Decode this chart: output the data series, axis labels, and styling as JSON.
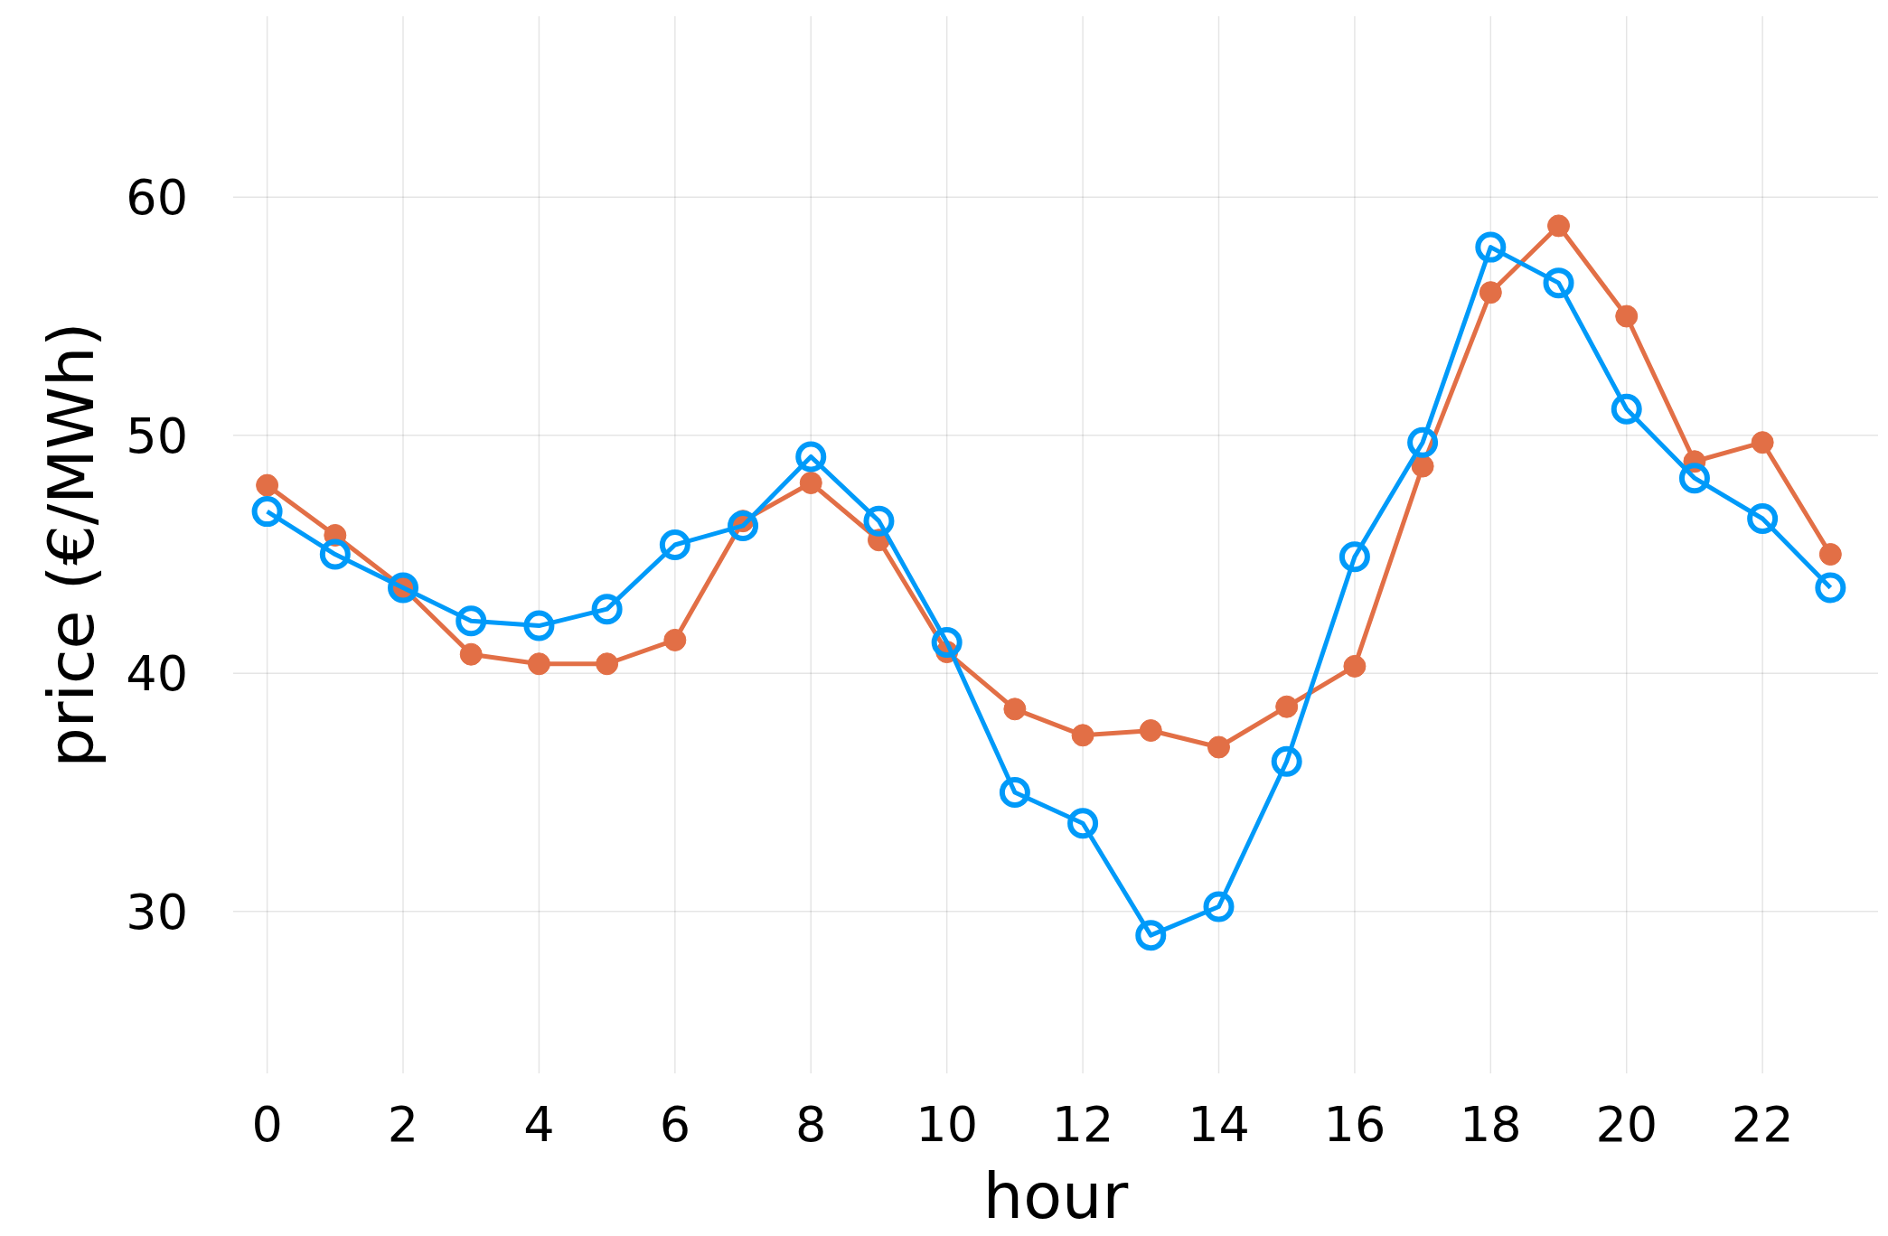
{
  "chart_data": {
    "type": "line",
    "xlabel": "hour",
    "ylabel": "price (€/MWh)",
    "x": [
      0,
      1,
      2,
      3,
      4,
      5,
      6,
      7,
      8,
      9,
      10,
      11,
      12,
      13,
      14,
      15,
      16,
      17,
      18,
      19,
      20,
      21,
      22,
      23
    ],
    "series": [
      {
        "color": "#009af9",
        "values": [
          46.8,
          45.0,
          43.6,
          42.2,
          42.0,
          42.7,
          45.4,
          46.2,
          49.1,
          46.4,
          41.3,
          35.0,
          33.7,
          29.0,
          30.2,
          36.3,
          44.9,
          49.7,
          57.9,
          56.4,
          51.1,
          48.2,
          46.5,
          43.6
        ]
      },
      {
        "color": "#e26f46",
        "values": [
          47.9,
          45.8,
          43.6,
          40.8,
          40.4,
          40.4,
          41.4,
          46.4,
          48.0,
          45.6,
          40.9,
          38.5,
          37.4,
          37.6,
          36.9,
          38.6,
          40.3,
          48.7,
          56.0,
          58.8,
          55.0,
          48.9,
          49.7,
          45.0
        ]
      }
    ],
    "xlim": [
      -0.5,
      23.7
    ],
    "ylim": [
      23.2,
      67.6
    ],
    "xticks": [
      0,
      2,
      4,
      6,
      8,
      10,
      12,
      14,
      16,
      18,
      20,
      22
    ],
    "yticks": [
      30,
      40,
      50,
      60
    ],
    "grid": true,
    "marker": "circle",
    "line_style": "solid"
  }
}
